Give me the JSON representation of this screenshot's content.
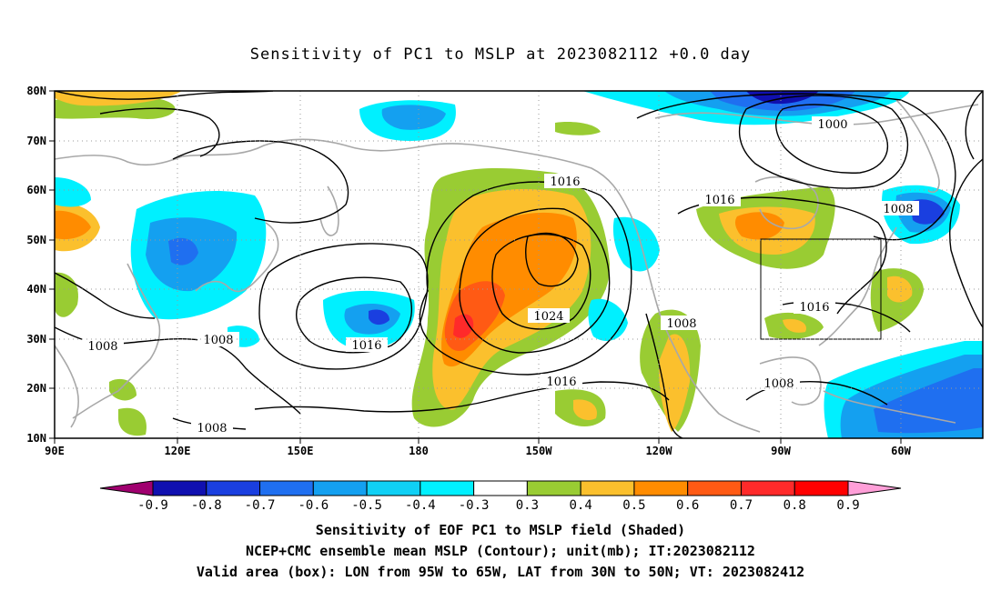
{
  "title": "Sensitivity of PC1 to MSLP at 2023082112 +0.0 day",
  "lat_ticks": [
    "80N",
    "70N",
    "60N",
    "50N",
    "40N",
    "30N",
    "20N",
    "10N"
  ],
  "lon_ticks": [
    "90E",
    "120E",
    "150E",
    "180",
    "150W",
    "120W",
    "90W",
    "60W"
  ],
  "contour_labels": [
    "1016",
    "1016",
    "1024",
    "1016",
    "1016",
    "1016",
    "1008",
    "1008",
    "1008",
    "1008",
    "1000",
    "1008",
    "1008"
  ],
  "colorbar": {
    "labels": [
      "-0.9",
      "-0.8",
      "-0.7",
      "-0.6",
      "-0.5",
      "-0.4",
      "-0.3",
      "0.3",
      "0.4",
      "0.5",
      "0.6",
      "0.7",
      "0.8",
      "0.9"
    ],
    "colors": [
      "#a0006f",
      "#1010b0",
      "#1a3fe0",
      "#1f6ff0",
      "#14a0f0",
      "#10d0f5",
      "#00f0ff",
      "#ffffff",
      "#99cc33",
      "#fbc02d",
      "#ff8c00",
      "#ff5a14",
      "#ff2a2a",
      "#ff0000",
      "#ff9fd8"
    ]
  },
  "captions": [
    "Sensitivity of EOF PC1 to MSLP field (Shaded)",
    "NCEP+CMC ensemble mean MSLP (Contour); unit(mb); IT:2023082112",
    "Valid area (box): LON from 95W to 65W, LAT from 30N to 50N; VT: 2023082412"
  ],
  "valid_box": {
    "lon_west": "95W",
    "lon_east": "65W",
    "lat_south": "30N",
    "lat_north": "50N"
  }
}
